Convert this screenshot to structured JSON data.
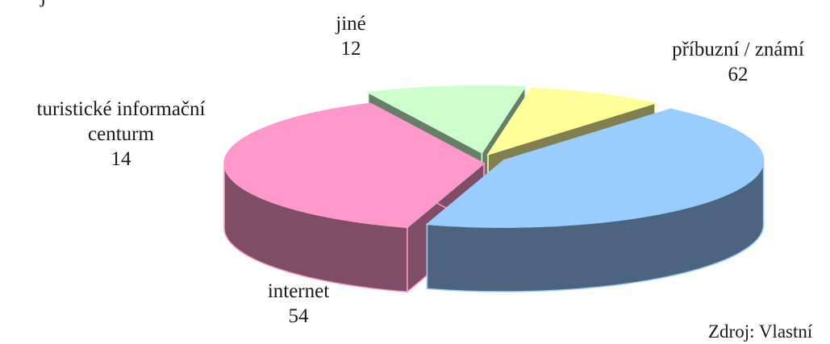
{
  "chart_data": {
    "type": "pie",
    "style": "3d-exploded",
    "categories": [
      "příbuzní / známí",
      "internet",
      "turistické informační centurm",
      "jiné"
    ],
    "values": [
      62,
      54,
      14,
      12
    ],
    "colors": {
      "top": [
        "#99ccff",
        "#ff99cc",
        "#ccffcc",
        "#ffff99"
      ],
      "side": [
        "#4d6480",
        "#7f4d66",
        "#667f66",
        "#807f4d"
      ],
      "edge": [
        "#99ccff",
        "#ff99cc",
        "#ccffcc",
        "#ffff99"
      ]
    },
    "labels": [
      {
        "lines": [
          "příbuzní / známí",
          "62"
        ]
      },
      {
        "lines": [
          "internet",
          "54"
        ]
      },
      {
        "lines": [
          "turistické informační",
          "centurm",
          "14"
        ]
      },
      {
        "lines": [
          "jiné",
          "12"
        ]
      }
    ],
    "legend": "none"
  },
  "source_text": "Zdroj: Vlastní",
  "top_fragment": "j"
}
